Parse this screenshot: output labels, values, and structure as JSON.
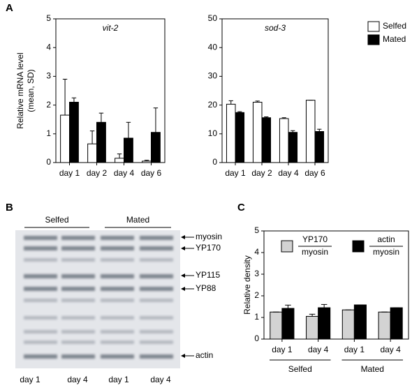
{
  "panel_labels": [
    "A",
    "B",
    "C"
  ],
  "chart_data": [
    {
      "type": "bar",
      "title": "vit-2",
      "ylabel": [
        "Relative mRNA level",
        "(mean, SD)"
      ],
      "categories": [
        "day 1",
        "day 2",
        "day 4",
        "day 6"
      ],
      "series": [
        {
          "name": "Selfed",
          "color": "#ffffff",
          "values": [
            1.65,
            0.65,
            0.15,
            0.05
          ],
          "errors": [
            1.25,
            0.45,
            0.15,
            0.03
          ]
        },
        {
          "name": "Mated",
          "color": "#000000",
          "values": [
            2.1,
            1.4,
            0.85,
            1.05
          ],
          "errors": [
            0.15,
            0.32,
            0.55,
            0.85
          ]
        }
      ],
      "ylim": [
        0,
        5
      ],
      "yticks": [
        0,
        1,
        2,
        3,
        4,
        5
      ]
    },
    {
      "type": "bar",
      "title": "sod-3",
      "categories": [
        "day 1",
        "day 2",
        "day 4",
        "day 6"
      ],
      "series": [
        {
          "color": "#ffffff",
          "values": [
            20.3,
            21,
            15.3,
            21.7
          ],
          "errors": [
            1.2,
            0.4,
            0.3,
            0
          ]
        },
        {
          "color": "#000000",
          "values": [
            17.4,
            15.6,
            10.5,
            10.8
          ],
          "errors": [
            0.3,
            0.3,
            0.6,
            0.8
          ]
        }
      ],
      "ylim": [
        0,
        50
      ],
      "yticks": [
        0,
        10,
        20,
        30,
        40,
        50
      ]
    },
    {
      "type": "bar",
      "ylabel": [
        "Relative density"
      ],
      "categories": [
        "day 1",
        "day 4",
        "day 1",
        "day 4"
      ],
      "group_labels": [
        "Selfed",
        "Mated"
      ],
      "series": [
        {
          "name": {
            "numerator": "YP170",
            "denominator": "myosin"
          },
          "color": "#d3d3d3",
          "values": [
            1.25,
            1.05,
            1.35,
            1.25
          ],
          "errors": [
            0,
            0.1,
            0,
            0
          ]
        },
        {
          "name": {
            "numerator": "actin",
            "denominator": "myosin"
          },
          "color": "#000000",
          "values": [
            1.42,
            1.45,
            1.58,
            1.45
          ],
          "errors": [
            0.15,
            0.15,
            0,
            0
          ]
        }
      ],
      "ylim": [
        0,
        5
      ],
      "yticks": [
        0,
        1,
        2,
        3,
        4,
        5
      ]
    }
  ],
  "gel": {
    "group_labels": [
      "Selfed",
      "Mated"
    ],
    "bands": [
      "myosin",
      "YP170",
      "YP115",
      "YP88",
      "actin"
    ],
    "lanes": [
      "day 1",
      "day 4",
      "day 1",
      "day 4"
    ]
  }
}
